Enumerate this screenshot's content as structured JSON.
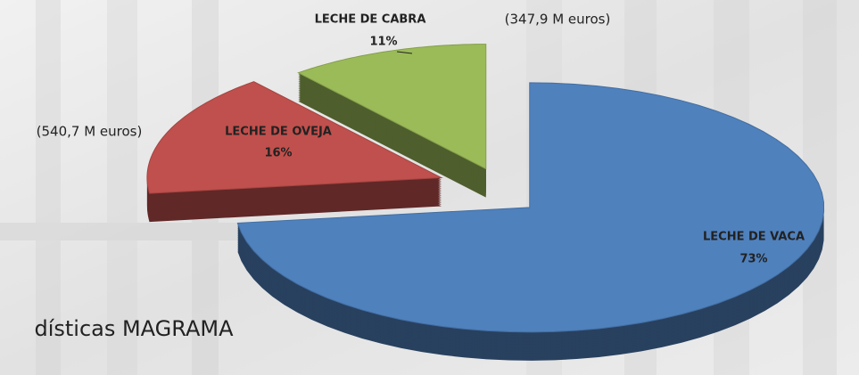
{
  "chart_data": {
    "type": "pie",
    "categories": [
      "LECHE DE VACA",
      "LECHE DE OVEJA",
      "LECHE DE CABRA"
    ],
    "values": [
      73,
      16,
      11
    ],
    "value_labels": [
      "73%",
      "16%",
      "11%"
    ],
    "colors": [
      "#4f81bd",
      "#c0504d",
      "#9bbb59"
    ],
    "annotations": [
      "(347,9 M euros)",
      "(540,7 M euros)",
      "dísticas MAGRAMA"
    ]
  }
}
